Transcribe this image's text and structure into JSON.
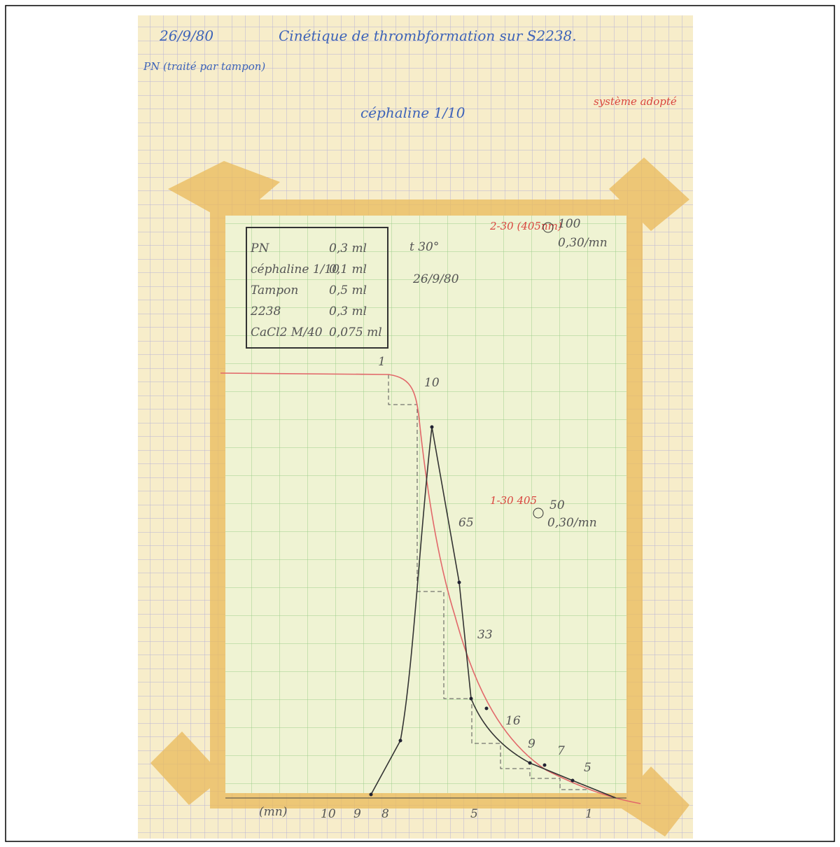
{
  "header": {
    "date": "26/9/80",
    "title": "Cinétique de thrombformation sur S2238.",
    "note": "PN (traité par tampon)"
  },
  "reagent": "céphaline 1/10",
  "system": "système adopté",
  "table": {
    "rows": [
      [
        "PN",
        "0,3 ml"
      ],
      [
        "céphaline 1/10",
        "0,1 ml"
      ],
      [
        "Tampon",
        "0,5 ml"
      ],
      [
        "2238",
        "0,3 ml"
      ],
      [
        "CaCl2 M/40",
        "0,075 ml"
      ]
    ]
  },
  "conditions": {
    "temperature": "t 30°",
    "date": "26/9/80"
  },
  "settings": [
    {
      "scale": "2-30 (405nm)",
      "value": "100",
      "rate": "0,30/mn"
    },
    {
      "scale": "1-30 405",
      "value": "50",
      "rate": "0,30/mn"
    }
  ],
  "curve_labels": [
    "1",
    "10",
    "65",
    "33",
    "16",
    "9",
    "7",
    "5"
  ],
  "axis": {
    "unit": "(mn)",
    "ticks": [
      "10",
      "9",
      "8",
      "5",
      "1"
    ]
  }
}
